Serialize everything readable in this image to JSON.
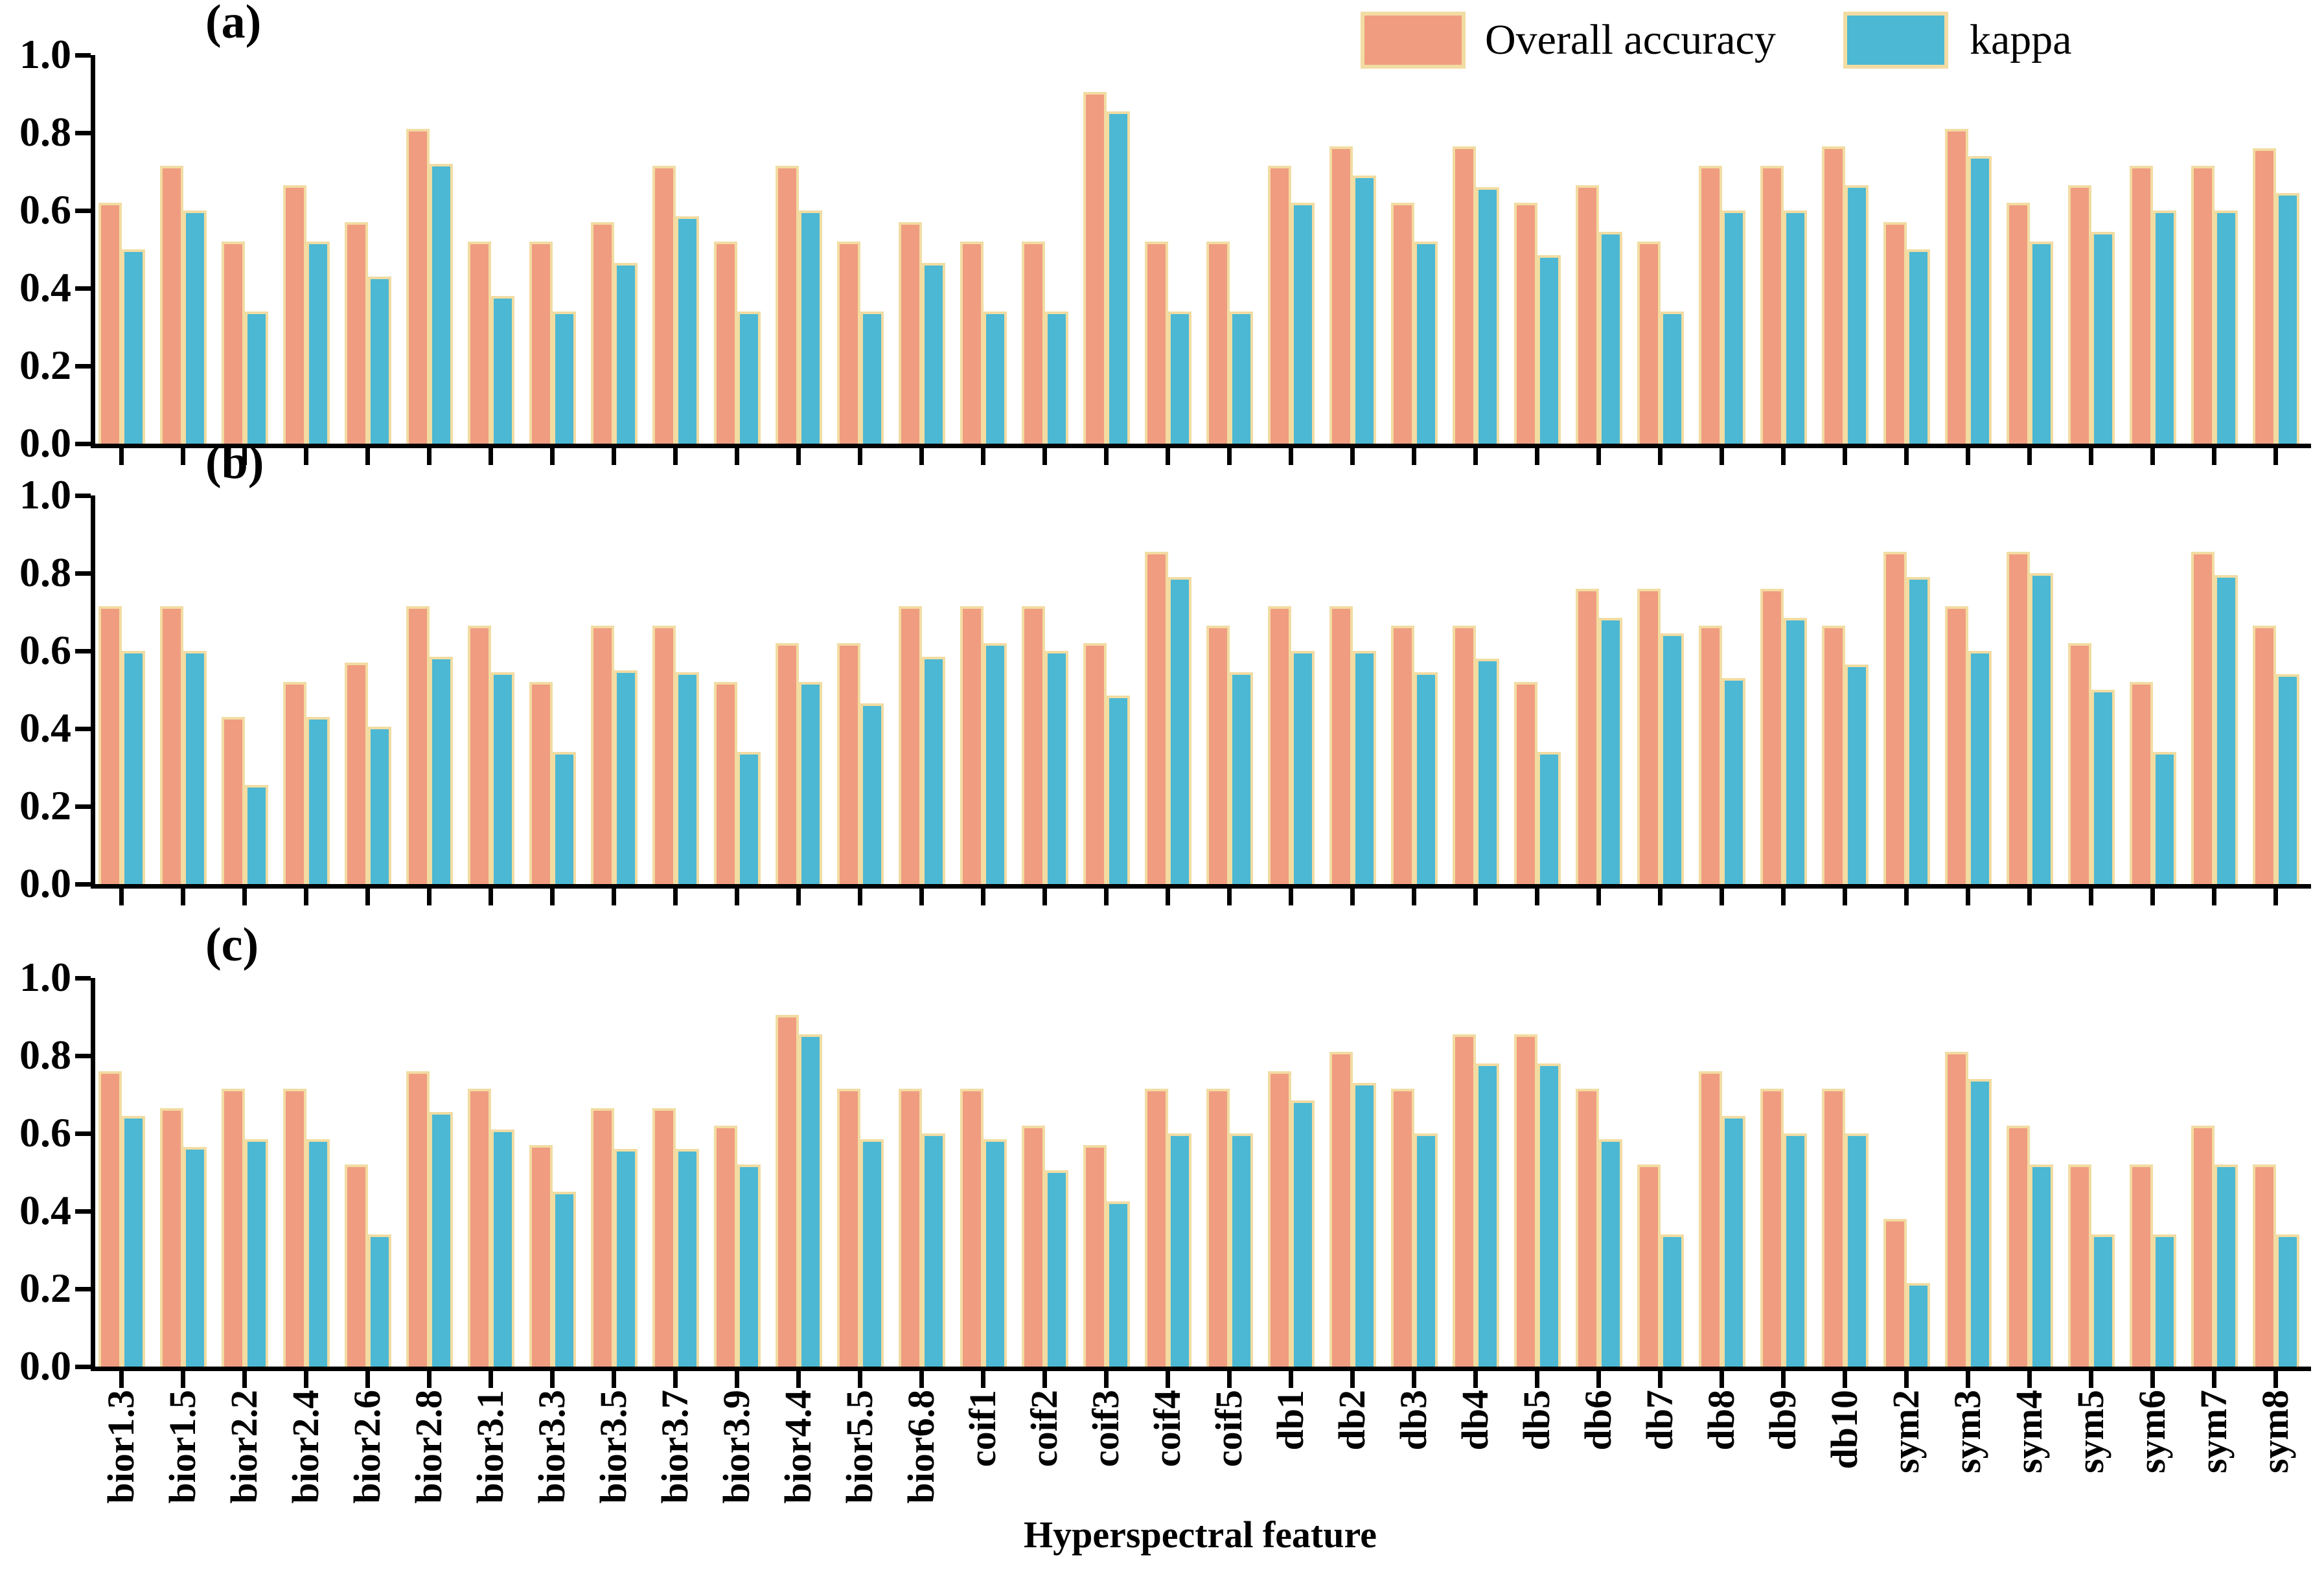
{
  "figure": {
    "legend": [
      {
        "label": "Overall accuracy",
        "color": "#F09C80"
      },
      {
        "label": "kappa",
        "color": "#4CB8D3"
      }
    ],
    "bar_edge_color": "#F2DCA2",
    "axis_color": "#000000",
    "xlabel": "Hyperspectral feature",
    "y_tick_labels": [
      "0.0",
      "0.2",
      "0.4",
      "0.6",
      "0.8",
      "1.0"
    ]
  },
  "chart_data": [
    {
      "type": "bar",
      "panel_label": "(a)",
      "ylim": [
        0,
        1
      ],
      "yticks": [
        0.0,
        0.2,
        0.4,
        0.6,
        0.8,
        1.0
      ],
      "legend_position": "top-right",
      "grid": false,
      "categories": [
        "bior1.3",
        "bior1.5",
        "bior2.2",
        "bior2.4",
        "bior2.6",
        "bior2.8",
        "bior3.1",
        "bior3.3",
        "bior3.5",
        "bior3.7",
        "bior3.9",
        "bior4.4",
        "bior5.5",
        "bior6.8",
        "coif1",
        "coif2",
        "coif3",
        "coif4",
        "coif5",
        "db1",
        "db2",
        "db3",
        "db4",
        "db5",
        "db6",
        "db7",
        "db8",
        "db9",
        "db10",
        "sym2",
        "sym3",
        "sym4",
        "sym5",
        "sym6",
        "sym7",
        "sym8"
      ],
      "series": [
        {
          "name": "Overall accuracy",
          "values": [
            0.62,
            0.715,
            0.52,
            0.665,
            0.57,
            0.81,
            0.52,
            0.52,
            0.57,
            0.715,
            0.52,
            0.715,
            0.52,
            0.57,
            0.52,
            0.52,
            0.905,
            0.52,
            0.52,
            0.715,
            0.765,
            0.62,
            0.765,
            0.62,
            0.665,
            0.52,
            0.715,
            0.715,
            0.765,
            0.57,
            0.81,
            0.62,
            0.665,
            0.715,
            0.715,
            0.76
          ]
        },
        {
          "name": "kappa",
          "values": [
            0.5,
            0.6,
            0.34,
            0.52,
            0.43,
            0.72,
            0.38,
            0.34,
            0.465,
            0.585,
            0.34,
            0.6,
            0.34,
            0.465,
            0.34,
            0.34,
            0.855,
            0.34,
            0.34,
            0.62,
            0.69,
            0.52,
            0.66,
            0.485,
            0.545,
            0.34,
            0.6,
            0.6,
            0.665,
            0.5,
            0.74,
            0.52,
            0.545,
            0.6,
            0.6,
            0.645
          ]
        }
      ]
    },
    {
      "type": "bar",
      "panel_label": "(b)",
      "ylim": [
        0,
        1
      ],
      "yticks": [
        0.0,
        0.2,
        0.4,
        0.6,
        0.8,
        1.0
      ],
      "grid": false,
      "categories": [
        "bior1.3",
        "bior1.5",
        "bior2.2",
        "bior2.4",
        "bior2.6",
        "bior2.8",
        "bior3.1",
        "bior3.3",
        "bior3.5",
        "bior3.7",
        "bior3.9",
        "bior4.4",
        "bior5.5",
        "bior6.8",
        "coif1",
        "coif2",
        "coif3",
        "coif4",
        "coif5",
        "db1",
        "db2",
        "db3",
        "db4",
        "db5",
        "db6",
        "db7",
        "db8",
        "db9",
        "db10",
        "sym2",
        "sym3",
        "sym4",
        "sym5",
        "sym6",
        "sym7",
        "sym8"
      ],
      "series": [
        {
          "name": "Overall accuracy",
          "values": [
            0.715,
            0.715,
            0.43,
            0.52,
            0.57,
            0.715,
            0.665,
            0.52,
            0.665,
            0.665,
            0.52,
            0.62,
            0.62,
            0.715,
            0.715,
            0.715,
            0.62,
            0.855,
            0.665,
            0.715,
            0.715,
            0.665,
            0.665,
            0.52,
            0.76,
            0.76,
            0.665,
            0.76,
            0.665,
            0.855,
            0.715,
            0.855,
            0.62,
            0.52,
            0.855,
            0.665
          ]
        },
        {
          "name": "kappa",
          "values": [
            0.6,
            0.6,
            0.255,
            0.43,
            0.405,
            0.585,
            0.545,
            0.34,
            0.55,
            0.545,
            0.34,
            0.52,
            0.465,
            0.585,
            0.62,
            0.6,
            0.485,
            0.79,
            0.545,
            0.6,
            0.6,
            0.545,
            0.58,
            0.34,
            0.685,
            0.645,
            0.53,
            0.685,
            0.565,
            0.79,
            0.6,
            0.8,
            0.5,
            0.34,
            0.795,
            0.54
          ]
        }
      ]
    },
    {
      "type": "bar",
      "panel_label": "(c)",
      "ylim": [
        0,
        1
      ],
      "yticks": [
        0.0,
        0.2,
        0.4,
        0.6,
        0.8,
        1.0
      ],
      "grid": false,
      "xlabel": "Hyperspectral feature",
      "categories": [
        "bior1.3",
        "bior1.5",
        "bior2.2",
        "bior2.4",
        "bior2.6",
        "bior2.8",
        "bior3.1",
        "bior3.3",
        "bior3.5",
        "bior3.7",
        "bior3.9",
        "bior4.4",
        "bior5.5",
        "bior6.8",
        "coif1",
        "coif2",
        "coif3",
        "coif4",
        "coif5",
        "db1",
        "db2",
        "db3",
        "db4",
        "db5",
        "db6",
        "db7",
        "db8",
        "db9",
        "db10",
        "sym2",
        "sym3",
        "sym4",
        "sym5",
        "sym6",
        "sym7",
        "sym8"
      ],
      "series": [
        {
          "name": "Overall accuracy",
          "values": [
            0.76,
            0.665,
            0.715,
            0.715,
            0.52,
            0.76,
            0.715,
            0.57,
            0.665,
            0.665,
            0.62,
            0.905,
            0.715,
            0.715,
            0.715,
            0.62,
            0.57,
            0.715,
            0.715,
            0.76,
            0.81,
            0.715,
            0.855,
            0.855,
            0.715,
            0.52,
            0.76,
            0.715,
            0.715,
            0.38,
            0.81,
            0.62,
            0.52,
            0.52,
            0.62,
            0.52
          ]
        },
        {
          "name": "kappa",
          "values": [
            0.645,
            0.565,
            0.585,
            0.585,
            0.34,
            0.655,
            0.61,
            0.45,
            0.56,
            0.56,
            0.52,
            0.855,
            0.585,
            0.6,
            0.585,
            0.505,
            0.425,
            0.6,
            0.6,
            0.685,
            0.73,
            0.6,
            0.78,
            0.78,
            0.585,
            0.34,
            0.645,
            0.6,
            0.6,
            0.215,
            0.74,
            0.52,
            0.34,
            0.34,
            0.52,
            0.34
          ]
        }
      ]
    }
  ]
}
